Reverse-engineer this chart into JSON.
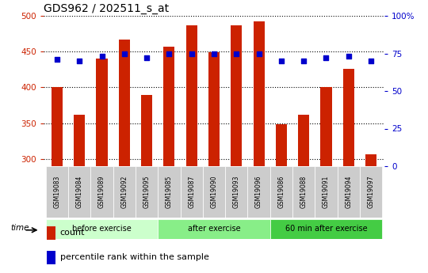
{
  "title": "GDS962 / 202511_s_at",
  "samples": [
    "GSM19083",
    "GSM19084",
    "GSM19089",
    "GSM19092",
    "GSM19095",
    "GSM19085",
    "GSM19087",
    "GSM19090",
    "GSM19093",
    "GSM19096",
    "GSM19086",
    "GSM19088",
    "GSM19091",
    "GSM19094",
    "GSM19097"
  ],
  "counts": [
    400,
    362,
    440,
    467,
    390,
    457,
    487,
    449,
    487,
    492,
    349,
    362,
    401,
    426,
    307
  ],
  "percentile_ranks": [
    71,
    70,
    73,
    75,
    72,
    75,
    75,
    75,
    75,
    75,
    70,
    70,
    72,
    73,
    70
  ],
  "groups": [
    {
      "label": "before exercise",
      "start": 0,
      "end": 5,
      "color": "#ccffcc"
    },
    {
      "label": "after exercise",
      "start": 5,
      "end": 10,
      "color": "#88ee88"
    },
    {
      "label": "60 min after exercise",
      "start": 10,
      "end": 15,
      "color": "#44cc44"
    }
  ],
  "ylim_left": [
    290,
    500
  ],
  "ylim_right": [
    0,
    100
  ],
  "yticks_left": [
    300,
    350,
    400,
    450,
    500
  ],
  "yticks_right": [
    0,
    25,
    50,
    75,
    100
  ],
  "bar_color": "#cc2200",
  "dot_color": "#0000cc",
  "bg_color": "#ffffff",
  "plot_bg_color": "#ffffff",
  "sample_bg_color": "#cccccc",
  "grid_color": "#000000",
  "title_color": "#000000",
  "left_tick_color": "#cc2200",
  "right_tick_color": "#0000cc",
  "bar_width": 0.5
}
